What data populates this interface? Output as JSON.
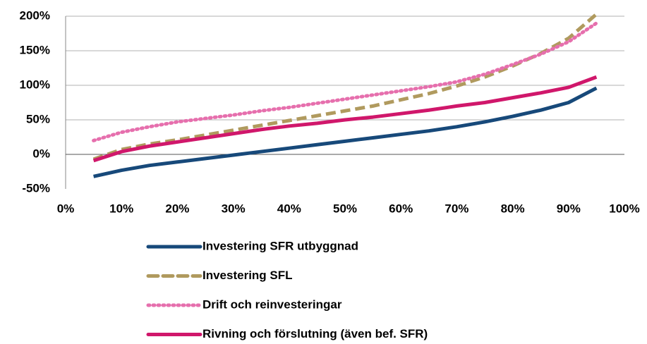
{
  "chart_data": {
    "type": "line",
    "x": [
      5,
      10,
      15,
      20,
      25,
      30,
      35,
      40,
      45,
      50,
      55,
      60,
      65,
      70,
      75,
      80,
      85,
      90,
      95
    ],
    "series": [
      {
        "name": "Investering SFR utbyggnad",
        "color": "#17497a",
        "dash": "solid",
        "values": [
          -32,
          -23,
          -16,
          -11,
          -6,
          -1,
          4,
          9,
          14,
          19,
          24,
          29,
          34,
          40,
          47,
          55,
          64,
          75,
          96
        ]
      },
      {
        "name": "Investering SFL",
        "color": "#b09a5e",
        "dash": "dashed",
        "values": [
          -7,
          7,
          15,
          21,
          28,
          35,
          42,
          49,
          56,
          63,
          70,
          79,
          88,
          99,
          112,
          128,
          146,
          168,
          203
        ]
      },
      {
        "name": "Drift och reinvesteringar",
        "color": "#e66fad",
        "dash": "dotted",
        "values": [
          20,
          32,
          40,
          47,
          52,
          57,
          63,
          68,
          74,
          80,
          86,
          92,
          98,
          105,
          116,
          130,
          145,
          163,
          190
        ]
      },
      {
        "name": "Rivning och förslutning (även bef. SFR)",
        "color": "#d0176b",
        "dash": "solid",
        "values": [
          -9,
          4,
          12,
          18,
          24,
          30,
          36,
          41,
          45,
          50,
          54,
          59,
          64,
          70,
          75,
          82,
          89,
          97,
          112
        ]
      }
    ],
    "xlim": [
      0,
      100
    ],
    "xticks": [
      {
        "value": 0,
        "label": "0%"
      },
      {
        "value": 10,
        "label": "10%"
      },
      {
        "value": 20,
        "label": "20%"
      },
      {
        "value": 30,
        "label": "30%"
      },
      {
        "value": 40,
        "label": "40%"
      },
      {
        "value": 50,
        "label": "50%"
      },
      {
        "value": 60,
        "label": "60%"
      },
      {
        "value": 70,
        "label": "70%"
      },
      {
        "value": 80,
        "label": "80%"
      },
      {
        "value": 90,
        "label": "90%"
      },
      {
        "value": 100,
        "label": "100%"
      }
    ],
    "ylim": [
      -50,
      200
    ],
    "yticks": [
      {
        "value": -50,
        "label": "-50%"
      },
      {
        "value": 0,
        "label": "0%"
      },
      {
        "value": 50,
        "label": "50%"
      },
      {
        "value": 100,
        "label": "100%"
      },
      {
        "value": 150,
        "label": "150%"
      },
      {
        "value": 200,
        "label": "200%"
      }
    ],
    "grid": true,
    "legend": "bottom"
  }
}
